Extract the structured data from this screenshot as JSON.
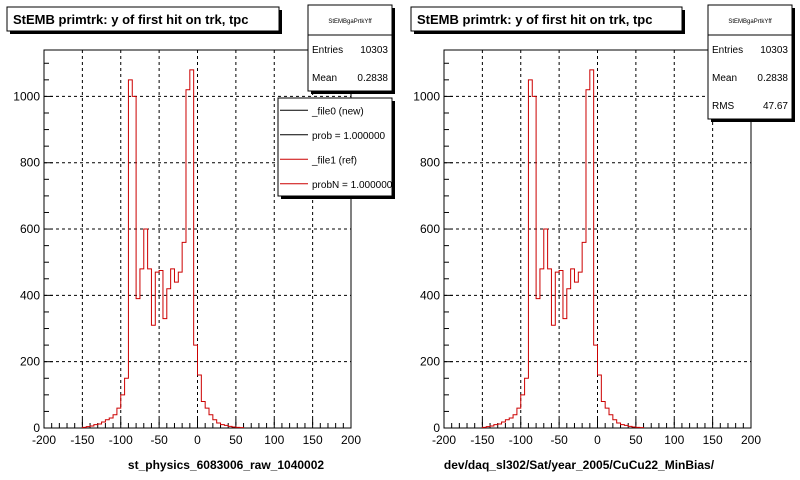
{
  "chart_data": [
    {
      "type": "histogram",
      "title": "StEMB primtrk: y of first hit on trk, tpc",
      "xlabel": "st_physics_6083006_raw_1040002",
      "ylabel": "",
      "xlim": [
        -200,
        200
      ],
      "ylim": [
        0,
        1140
      ],
      "grid": true,
      "x_ticks": [
        "-200",
        "-150",
        "-100",
        "-50",
        "0",
        "50",
        "100",
        "150",
        "200"
      ],
      "y_ticks": [
        "0",
        "200",
        "400",
        "600",
        "800",
        "1000"
      ],
      "stats": {
        "name": "StEMBgaPrtkYff",
        "rows": [
          {
            "label": "Entries",
            "value": "10303"
          },
          {
            "label": "Mean",
            "value": "0.2838"
          }
        ]
      },
      "legend": {
        "placement": "top-right",
        "entries": [
          "_file0 (new)",
          "prob = 1.000000",
          "_file1 (ref)",
          "probN = 1.000000"
        ],
        "colors": [
          "#000000",
          "#000000",
          "#cc0000",
          "#cc0000"
        ]
      },
      "bins": {
        "start": -150,
        "width": 5
      },
      "series": [
        {
          "color": "#cc0000",
          "values": [
            2,
            4,
            6,
            10,
            12,
            18,
            25,
            30,
            40,
            60,
            100,
            150,
            1050,
            1000,
            390,
            480,
            600,
            480,
            310,
            470,
            475,
            330,
            420,
            480,
            440,
            470,
            560,
            1020,
            1080,
            250,
            160,
            80,
            60,
            40,
            25,
            15,
            10,
            8,
            5,
            3,
            2,
            1
          ]
        }
      ]
    },
    {
      "type": "histogram",
      "title": "StEMB primtrk: y of first hit on trk, tpc",
      "xlabel": "dev/daq_sl302/Sat/year_2005/CuCu22_MinBias/",
      "ylabel": "",
      "xlim": [
        -200,
        200
      ],
      "ylim": [
        0,
        1140
      ],
      "grid": true,
      "x_ticks": [
        "-200",
        "-150",
        "-100",
        "-50",
        "0",
        "50",
        "100",
        "150",
        "200"
      ],
      "y_ticks": [
        "0",
        "200",
        "400",
        "600",
        "800",
        "1000"
      ],
      "stats": {
        "name": "StEMBgaPrtkYff",
        "rows": [
          {
            "label": "Entries",
            "value": "10303"
          },
          {
            "label": "Mean",
            "value": "0.2838"
          },
          {
            "label": "RMS",
            "value": "47.67"
          }
        ]
      },
      "bins": {
        "start": -150,
        "width": 5
      },
      "series": [
        {
          "color": "#cc0000",
          "values": [
            2,
            4,
            6,
            10,
            12,
            18,
            25,
            30,
            40,
            60,
            100,
            150,
            1050,
            1000,
            390,
            480,
            600,
            480,
            310,
            470,
            475,
            330,
            420,
            480,
            440,
            470,
            560,
            1020,
            1080,
            250,
            160,
            80,
            60,
            40,
            25,
            15,
            10,
            8,
            5,
            3,
            2,
            1
          ]
        }
      ]
    }
  ]
}
